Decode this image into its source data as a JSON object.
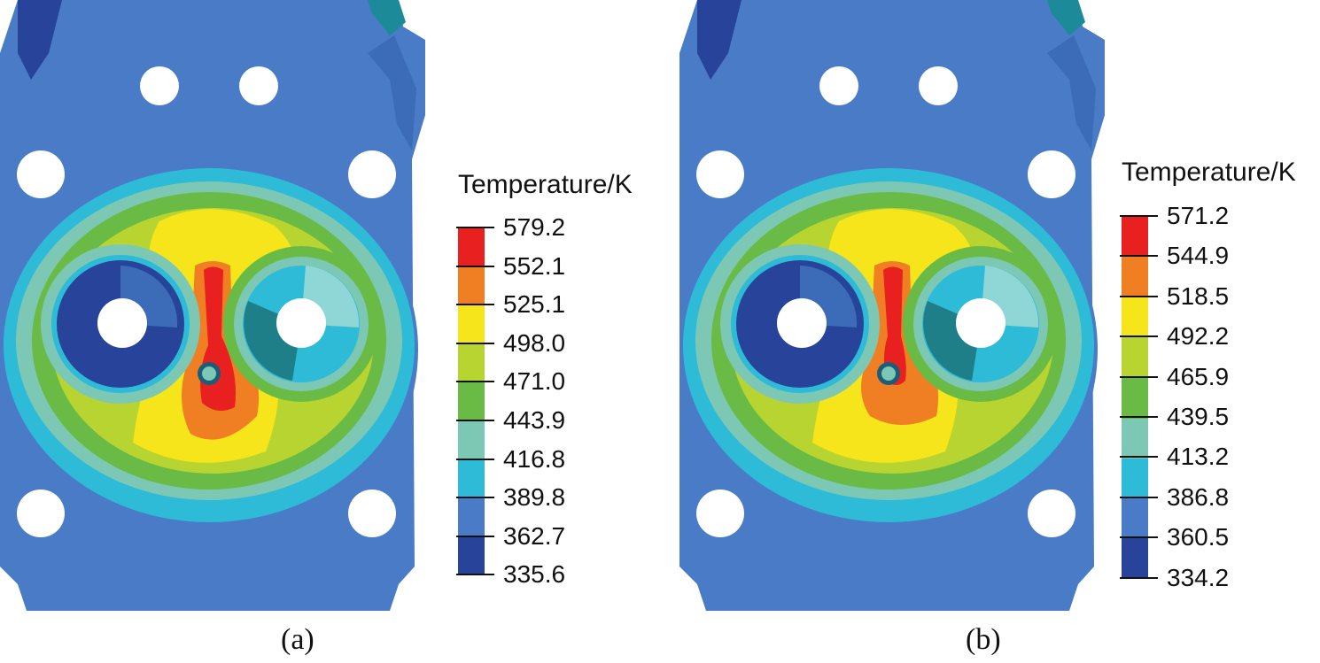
{
  "colors": [
    "#e8201f",
    "#f07f23",
    "#f5e51a",
    "#b8d430",
    "#6abb45",
    "#7cc8b4",
    "#2dbbd8",
    "#4a7bc6",
    "#28449a"
  ],
  "panels": [
    {
      "caption": "(a)",
      "legend_title": "Temperature/K",
      "ticks": [
        "579.2",
        "552.1",
        "525.1",
        "498.0",
        "471.0",
        "443.9",
        "416.8",
        "389.8",
        "362.7",
        "335.6"
      ]
    },
    {
      "caption": "(b)",
      "legend_title": "Temperature/K",
      "ticks": [
        "571.2",
        "544.9",
        "518.5",
        "492.2",
        "465.9",
        "439.5",
        "413.2",
        "386.8",
        "360.5",
        "334.2"
      ]
    }
  ]
}
